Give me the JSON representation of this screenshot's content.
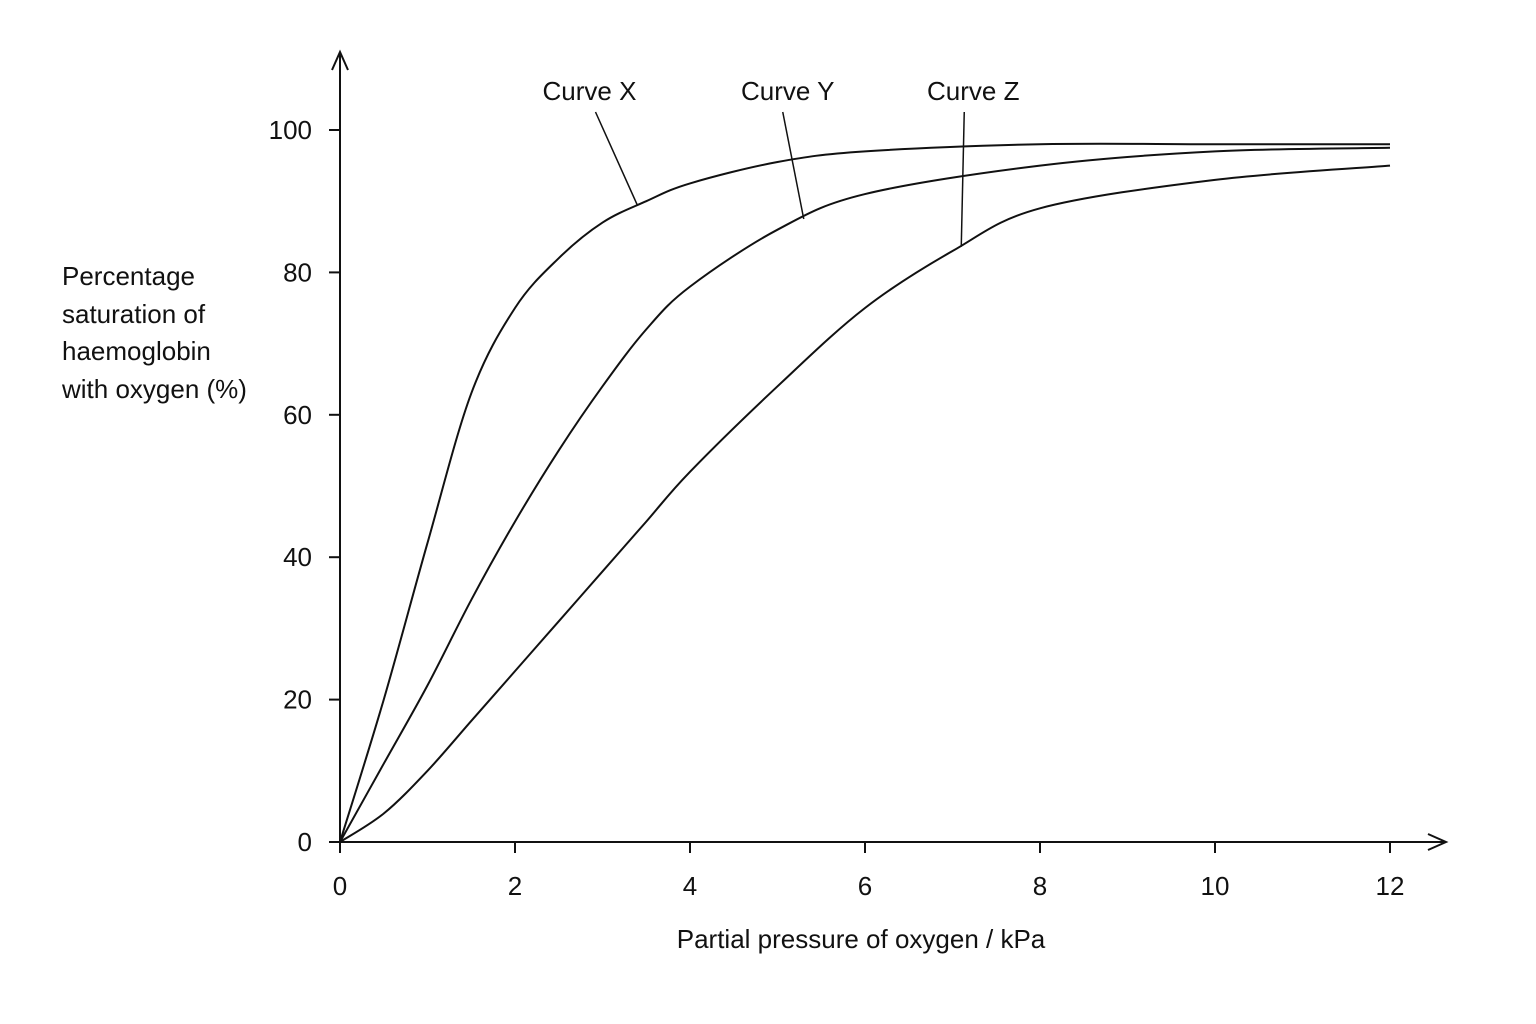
{
  "chart_data": {
    "type": "line",
    "xlabel": "Partial pressure of oxygen / kPa",
    "ylabel_lines": [
      "Percentage",
      "saturation of",
      "haemoglobin",
      "with oxygen (%)"
    ],
    "xlim": [
      0,
      12
    ],
    "ylim": [
      0,
      100
    ],
    "x_ticks": [
      "0",
      "2",
      "4",
      "6",
      "8",
      "10",
      "12"
    ],
    "y_ticks": [
      "0",
      "20",
      "40",
      "60",
      "80",
      "100"
    ],
    "grid": false,
    "series": [
      {
        "name": "Curve X",
        "x": [
          0,
          0.5,
          1,
          1.5,
          2,
          2.5,
          3,
          3.5,
          4,
          5,
          6,
          8,
          10,
          12
        ],
        "y": [
          0,
          20,
          42,
          63,
          75,
          82,
          87,
          90,
          92.5,
          95.5,
          97,
          98,
          98,
          98
        ]
      },
      {
        "name": "Curve Y",
        "x": [
          0,
          0.5,
          1,
          1.5,
          2,
          2.5,
          3,
          3.5,
          4,
          5,
          6,
          8,
          10,
          12
        ],
        "y": [
          0,
          11,
          22,
          34,
          45,
          55,
          64,
          72,
          78,
          86,
          91,
          95,
          97,
          97.5
        ]
      },
      {
        "name": "Curve Z",
        "x": [
          0,
          0.5,
          1,
          1.5,
          2,
          2.5,
          3,
          3.5,
          4,
          5,
          6,
          7,
          8,
          10,
          12
        ],
        "y": [
          0,
          4,
          10,
          17,
          24,
          31,
          38,
          45,
          52,
          64,
          75,
          83,
          89,
          93,
          95
        ]
      }
    ],
    "annotations": [
      {
        "text": "Curve X",
        "target_series": 0,
        "at_x": 3.4
      },
      {
        "text": "Curve Y",
        "target_series": 1,
        "at_x": 5.3
      },
      {
        "text": "Curve Z",
        "target_series": 2,
        "at_x": 7.1
      }
    ]
  }
}
